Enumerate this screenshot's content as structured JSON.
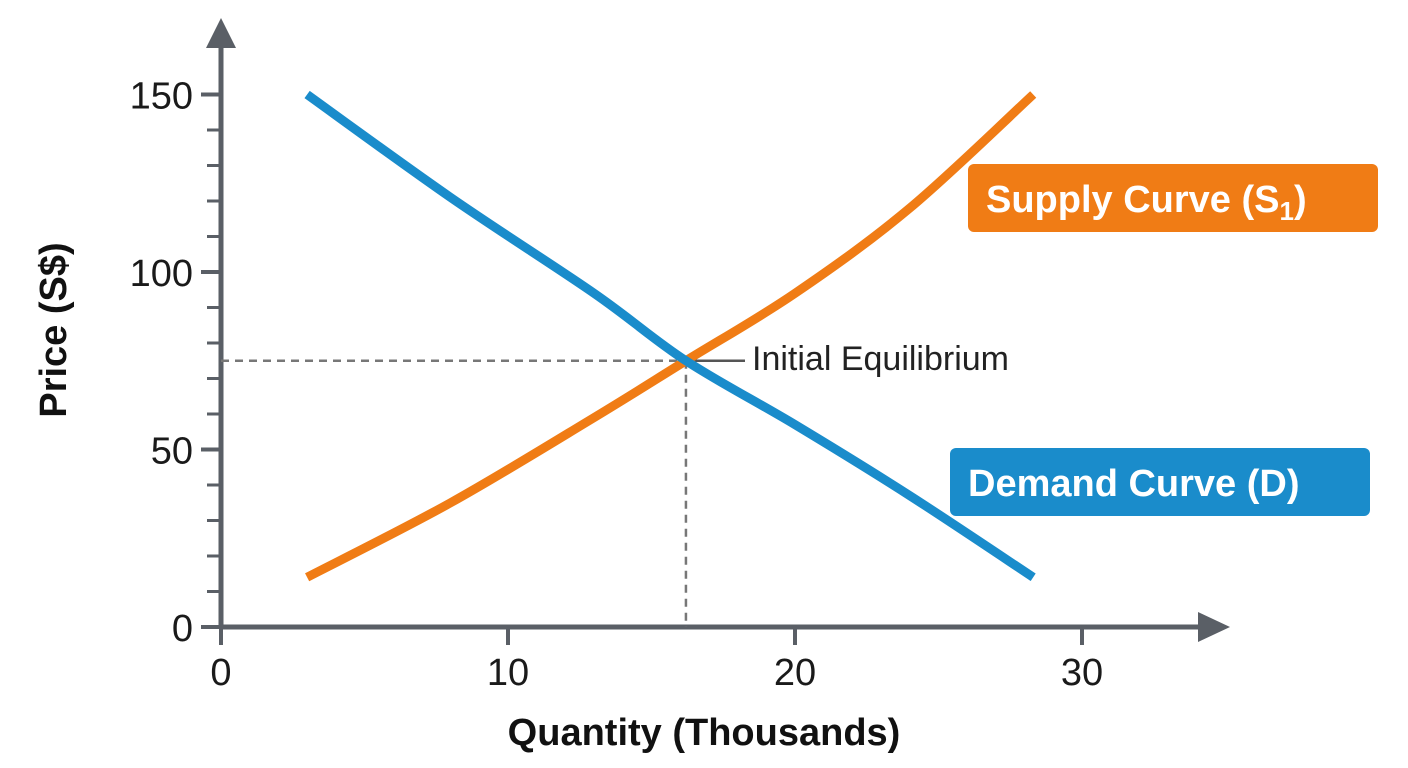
{
  "chart_data": {
    "type": "line",
    "xlabel": "Quantity (Thousands)",
    "ylabel": "Price (S$)",
    "xlim": [
      0,
      35
    ],
    "ylim": [
      0,
      150
    ],
    "x_ticks": [
      0,
      10,
      20,
      30
    ],
    "y_ticks": [
      0,
      50,
      100,
      150
    ],
    "y_minor_step": 10,
    "grid": false,
    "series": [
      {
        "name": "Supply Curve (S1)",
        "label_main": "Supply Curve (S",
        "label_sub": "1",
        "label_close": ")",
        "color": "#f07c15",
        "x": [
          3,
          8,
          13,
          16.2,
          20,
          24,
          28.3
        ],
        "y": [
          14,
          35,
          59,
          75,
          94,
          118,
          150
        ]
      },
      {
        "name": "Demand Curve (D)",
        "label_main": "Demand Curve (D)",
        "color": "#1a8ccb",
        "x": [
          3,
          8,
          13,
          16.2,
          20,
          24,
          28.3
        ],
        "y": [
          150,
          121,
          94,
          75,
          57,
          37,
          14
        ]
      }
    ],
    "annotations": [
      {
        "text": "Initial Equilibrium",
        "x": 16.2,
        "y": 75
      }
    ],
    "axis_color": "#5a5f66",
    "guide_color": "#777777"
  }
}
